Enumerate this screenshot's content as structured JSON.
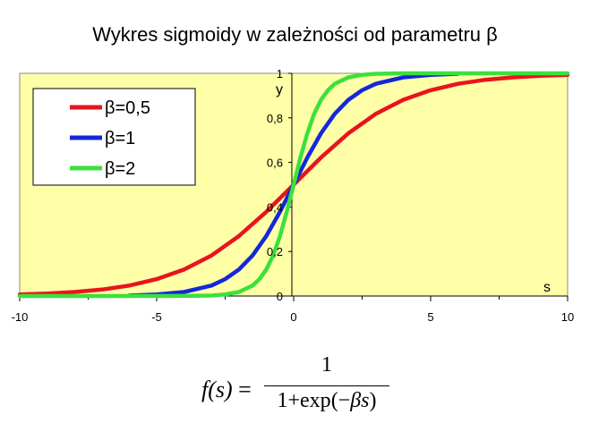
{
  "chart_data": {
    "type": "line",
    "title": "Wykres sigmoidy w zależności od parametru β",
    "xlabel": "s",
    "ylabel": "y",
    "xlim": [
      -10,
      10
    ],
    "ylim": [
      0,
      1
    ],
    "x_ticks": [
      -10,
      -5,
      0,
      5,
      10
    ],
    "x_tick_labels": [
      "-10",
      "-5",
      "0",
      "5",
      "10"
    ],
    "y_ticks": [
      0,
      0.2,
      0.4,
      0.6,
      0.8,
      1
    ],
    "y_tick_labels": [
      "0",
      "0,2",
      "0,4",
      "0,6",
      "0,8",
      "1"
    ],
    "legend_position": "top-left",
    "grid": false,
    "background_color": "#FFFFA8",
    "function": "1/(1+exp(-β·s))",
    "series": [
      {
        "name": "β=0,5",
        "beta": 0.5,
        "color": "#E8141E",
        "x": [
          -10,
          -9,
          -8,
          -7,
          -6,
          -5,
          -4,
          -3,
          -2,
          -1,
          0,
          1,
          2,
          3,
          4,
          5,
          6,
          7,
          8,
          9,
          10
        ],
        "y": [
          0.007,
          0.011,
          0.018,
          0.029,
          0.047,
          0.076,
          0.119,
          0.182,
          0.269,
          0.378,
          0.5,
          0.622,
          0.731,
          0.818,
          0.881,
          0.924,
          0.953,
          0.971,
          0.982,
          0.989,
          0.993
        ]
      },
      {
        "name": "β=1",
        "beta": 1,
        "color": "#1428D8",
        "x": [
          -6,
          -5,
          -4,
          -3,
          -2.5,
          -2,
          -1.5,
          -1,
          -0.5,
          0,
          0.5,
          1,
          1.5,
          2,
          2.5,
          3,
          4,
          5,
          6
        ],
        "y": [
          0.002,
          0.007,
          0.018,
          0.047,
          0.076,
          0.119,
          0.182,
          0.269,
          0.378,
          0.5,
          0.622,
          0.731,
          0.818,
          0.881,
          0.924,
          0.953,
          0.982,
          0.993,
          0.998
        ]
      },
      {
        "name": "β=2",
        "beta": 2,
        "color": "#3CE03C",
        "x": [
          -10,
          -4,
          -3,
          -2.5,
          -2,
          -1.5,
          -1.25,
          -1,
          -0.75,
          -0.5,
          -0.25,
          0,
          0.25,
          0.5,
          0.75,
          1,
          1.25,
          1.5,
          2,
          2.5,
          3,
          4,
          10
        ],
        "y": [
          0,
          0.0003,
          0.002,
          0.007,
          0.018,
          0.047,
          0.076,
          0.119,
          0.182,
          0.269,
          0.378,
          0.5,
          0.622,
          0.731,
          0.818,
          0.881,
          0.924,
          0.953,
          0.982,
          0.993,
          0.998,
          1,
          1
        ]
      }
    ]
  },
  "formula": {
    "lhs_f": "f",
    "lhs_arg": "(s)",
    "equals": "=",
    "numerator": "1",
    "den_one": "1",
    "den_plus": "+",
    "den_exp": "exp",
    "den_open": "(−",
    "den_beta": "β",
    "den_s": "s",
    "den_close": ")"
  }
}
